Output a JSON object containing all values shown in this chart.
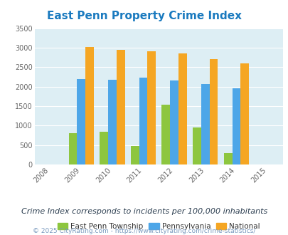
{
  "title": "East Penn Property Crime Index",
  "years": [
    2009,
    2010,
    2011,
    2012,
    2013,
    2014
  ],
  "east_penn": [
    800,
    840,
    470,
    1530,
    960,
    295
  ],
  "pennsylvania": [
    2200,
    2170,
    2230,
    2160,
    2070,
    1950
  ],
  "national": [
    3020,
    2950,
    2900,
    2860,
    2710,
    2590
  ],
  "color_east_penn": "#8dc63f",
  "color_pennsylvania": "#4da6e8",
  "color_national": "#f5a623",
  "xlim": [
    2007.5,
    2015.5
  ],
  "ylim": [
    0,
    3500
  ],
  "yticks": [
    0,
    500,
    1000,
    1500,
    2000,
    2500,
    3000,
    3500
  ],
  "xticks": [
    2008,
    2009,
    2010,
    2011,
    2012,
    2013,
    2014,
    2015
  ],
  "background_color": "#ddeef4",
  "bar_width": 0.27,
  "legend_labels": [
    "East Penn Township",
    "Pennsylvania",
    "National"
  ],
  "subtitle": "Crime Index corresponds to incidents per 100,000 inhabitants",
  "footer": "© 2025 CityRating.com - https://www.cityrating.com/crime-statistics/",
  "title_color": "#1a7abf",
  "subtitle_color": "#2c3e50",
  "footer_color": "#7a9abf",
  "grid_color": "#ffffff",
  "title_fontsize": 11,
  "subtitle_fontsize": 8,
  "footer_fontsize": 6.5,
  "tick_fontsize": 7,
  "legend_fontsize": 7.5
}
